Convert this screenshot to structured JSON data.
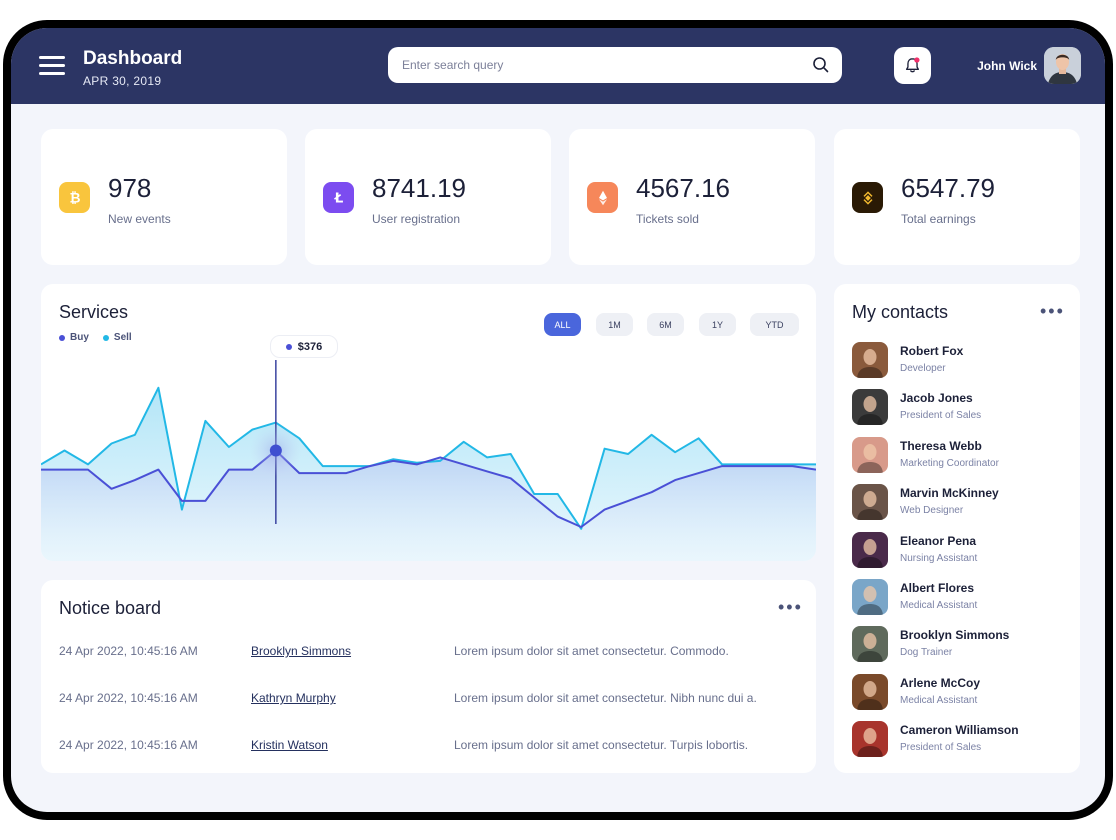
{
  "header": {
    "title": "Dashboard",
    "date": "APR 30, 2019",
    "search_placeholder": "Enter search query",
    "user_name": "John Wick"
  },
  "stats": [
    {
      "value": "978",
      "label": "New events",
      "icon": "bitcoin-icon",
      "color": "#f9c53d"
    },
    {
      "value": "8741.19",
      "label": "User registration",
      "icon": "litecoin-icon",
      "color": "#7c4cf0"
    },
    {
      "value": "4567.16",
      "label": "Tickets sold",
      "icon": "ethereum-icon",
      "color": "#f6875a"
    },
    {
      "value": "6547.79",
      "label": "Total earnings",
      "icon": "binance-icon",
      "color": "#2a1a05"
    }
  ],
  "services": {
    "title": "Services",
    "legend": [
      {
        "label": "Buy",
        "color": "#4a50d6"
      },
      {
        "label": "Sell",
        "color": "#22b8e6"
      }
    ],
    "periods": [
      {
        "label": "ALL",
        "active": true
      },
      {
        "label": "1M",
        "active": false
      },
      {
        "label": "6M",
        "active": false
      },
      {
        "label": "1Y",
        "active": false
      },
      {
        "label": "YTD",
        "active": false
      }
    ],
    "tooltip_value": "$376"
  },
  "chart_data": {
    "type": "area",
    "title": "Services",
    "series": [
      {
        "name": "Sell",
        "color": "#22b8e6",
        "values": [
          40,
          48,
          40,
          52,
          57,
          84,
          14,
          65,
          50,
          60,
          64,
          55,
          39,
          39,
          39,
          43,
          41,
          42,
          53,
          44,
          46,
          23,
          23,
          3,
          49,
          46,
          57,
          47,
          55,
          40,
          40,
          40,
          40,
          40
        ]
      },
      {
        "name": "Buy",
        "color": "#4a50d6",
        "values": [
          37,
          37,
          37,
          26,
          31,
          37,
          19,
          19,
          37,
          37,
          48,
          35,
          35,
          35,
          39,
          42,
          40,
          44,
          40,
          36,
          32,
          21,
          10,
          4,
          14,
          19,
          24,
          31,
          35,
          39,
          39,
          39,
          39,
          37
        ]
      }
    ],
    "tooltip": {
      "series": "Buy",
      "label": "$376"
    },
    "grid": false
  },
  "notice_board": {
    "title": "Notice board",
    "rows": [
      {
        "date": "24 Apr 2022, 10:45:16 AM",
        "name": "Brooklyn Simmons",
        "text": "Lorem ipsum dolor sit amet consectetur. Commodo."
      },
      {
        "date": "24 Apr 2022, 10:45:16 AM",
        "name": "Kathryn Murphy",
        "text": "Lorem ipsum dolor sit amet consectetur. Nibh nunc dui a."
      },
      {
        "date": "24 Apr 2022, 10:45:16 AM",
        "name": "Kristin Watson",
        "text": "Lorem ipsum dolor sit amet consectetur. Turpis lobortis."
      }
    ]
  },
  "contacts": {
    "title": "My contacts",
    "items": [
      {
        "name": "Robert Fox",
        "role": "Developer",
        "color": "#8a5a3c"
      },
      {
        "name": "Jacob Jones",
        "role": "President of Sales",
        "color": "#3b3b3b"
      },
      {
        "name": "Theresa Webb",
        "role": "Marketing Coordinator",
        "color": "#d89a8a"
      },
      {
        "name": "Marvin McKinney",
        "role": "Web Designer",
        "color": "#6a5448"
      },
      {
        "name": "Eleanor Pena",
        "role": "Nursing Assistant",
        "color": "#4a2a4a"
      },
      {
        "name": "Albert Flores",
        "role": "Medical Assistant",
        "color": "#7aa6c8"
      },
      {
        "name": "Brooklyn Simmons",
        "role": "Dog Trainer",
        "color": "#5f6a5c"
      },
      {
        "name": "Arlene McCoy",
        "role": "Medical Assistant",
        "color": "#7a4a2a"
      },
      {
        "name": "Cameron Williamson",
        "role": "President of Sales",
        "color": "#a8342c"
      }
    ]
  }
}
